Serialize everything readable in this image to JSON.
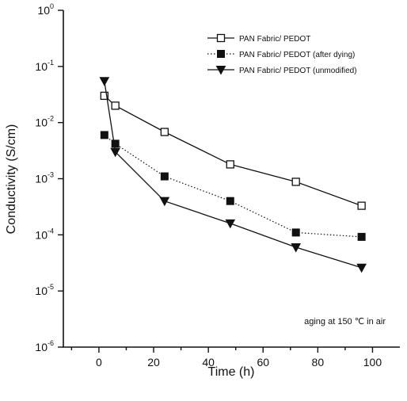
{
  "chart_data": {
    "type": "line",
    "title": "",
    "xlabel": "Time (h)",
    "ylabel": "Conductivity (S/cm)",
    "xlim": [
      -13,
      110
    ],
    "ylim": [
      1e-06,
      1
    ],
    "yscale": "log",
    "x_ticks": [
      0,
      20,
      40,
      60,
      80,
      100
    ],
    "x_tick_labels": [
      "0",
      "20",
      "40",
      "60",
      "80",
      "100"
    ],
    "y_ticks": [
      1e-06,
      1e-05,
      0.0001,
      0.001,
      0.01,
      0.1,
      1
    ],
    "y_tick_labels": [
      {
        "base": "10",
        "exp": "-6"
      },
      {
        "base": "10",
        "exp": "-5"
      },
      {
        "base": "10",
        "exp": "-4"
      },
      {
        "base": "10",
        "exp": "-3"
      },
      {
        "base": "10",
        "exp": "-2"
      },
      {
        "base": "10",
        "exp": "-1"
      },
      {
        "base": "10",
        "exp": "0"
      }
    ],
    "legend_position": "top-right",
    "grid": false,
    "series": [
      {
        "name": "PAN Fabric/ PEDOT",
        "marker": "square-open",
        "line": "solid",
        "color": "#111111",
        "x": [
          2,
          6,
          24,
          48,
          72,
          96
        ],
        "y": [
          0.03,
          0.02,
          0.0068,
          0.0018,
          0.00088,
          0.00033
        ]
      },
      {
        "name": "PAN Fabric/ PEDOT (after dying)",
        "marker": "square-filled",
        "line": "dotted",
        "color": "#111111",
        "x": [
          2,
          6,
          24,
          48,
          72,
          96
        ],
        "y": [
          0.006,
          0.0042,
          0.0011,
          0.0004,
          0.00011,
          9.2e-05
        ]
      },
      {
        "name": "PAN Fabric/ PEDOT (unmodified)",
        "marker": "triangle-down-filled",
        "line": "solid",
        "color": "#111111",
        "x": [
          2,
          6,
          24,
          48,
          72,
          96
        ],
        "y": [
          0.055,
          0.003,
          0.0004,
          0.00016,
          6e-05,
          2.6e-05
        ]
      }
    ],
    "annotation": "aging at 150 ℃ in air"
  }
}
